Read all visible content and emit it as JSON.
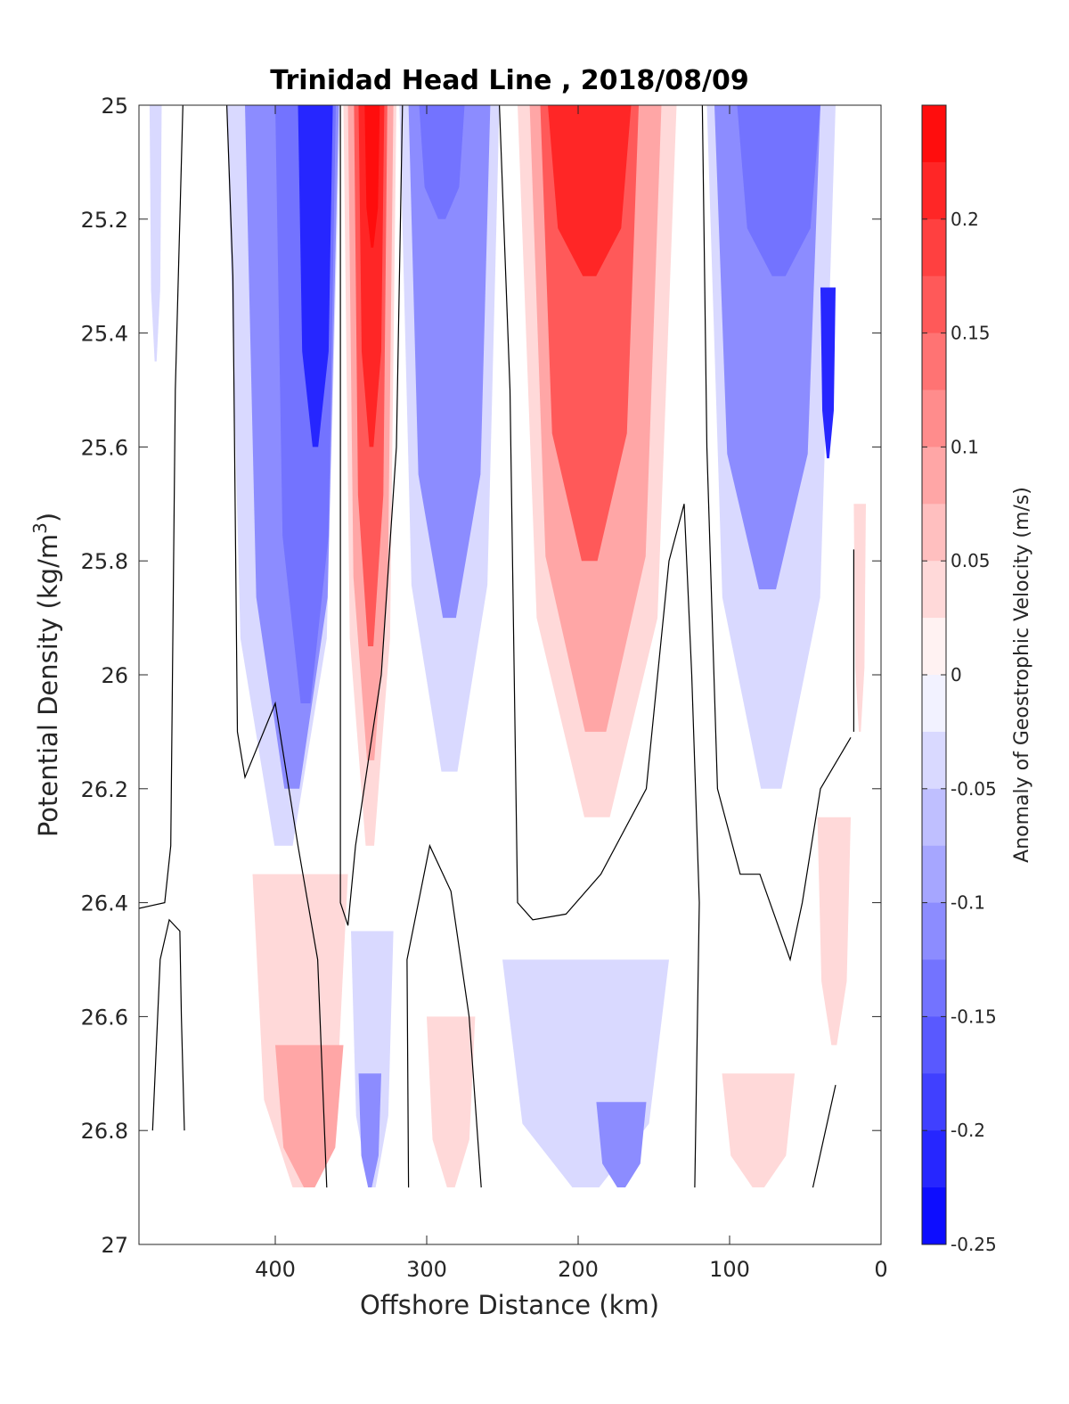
{
  "chart_data": {
    "type": "contourf",
    "title": "Trinidad Head Line , 2018/08/09",
    "xlabel": "Offshore Distance (km)",
    "ylabel": "Potential Density (kg/m",
    "ylabel_sup": "3",
    "ylabel_close": ")",
    "xlim": [
      490,
      0
    ],
    "x_reversed": true,
    "ylim": [
      25,
      27
    ],
    "y_reversed": true,
    "x_ticks": [
      400,
      300,
      200,
      100,
      0
    ],
    "y_ticks": [
      25,
      25.2,
      25.4,
      25.6,
      25.8,
      26,
      26.2,
      26.4,
      26.6,
      26.8,
      27
    ],
    "y_tick_labels": [
      "25",
      "25.2",
      "25.4",
      "25.6",
      "25.8",
      "26",
      "26.2",
      "26.4",
      "26.6",
      "26.8",
      "27"
    ],
    "colorbar": {
      "label": "Anomaly of Geostrophic Velocity (m/s)",
      "range": [
        -0.25,
        0.25
      ],
      "levels": 20,
      "ticks": [
        0.2,
        0.15,
        0.1,
        0.05,
        0,
        -0.05,
        -0.1,
        -0.15,
        -0.2,
        -0.25
      ],
      "tick_labels": [
        "0.2",
        "0.15",
        "0.1",
        "0.05",
        "0",
        "-0.05",
        "-0.1",
        "-0.15",
        "-0.2",
        "-0.25"
      ],
      "colormap": "blue-white-red",
      "neg_color": "#0000ff",
      "pos_color": "#ff0000",
      "zero_color": "#ffffff"
    },
    "data_extent": {
      "density_max": 26.9
    },
    "bands": [
      {
        "name": "blue-west",
        "v": -0.05,
        "x1": 483,
        "x2": 475,
        "y1": 25,
        "y2": 25.45
      },
      {
        "name": "blue-upper-west",
        "v": -0.05,
        "x1": 432,
        "x2": 357,
        "y1": 25,
        "y2": 26.3
      },
      {
        "name": "blue-upper-west",
        "v": -0.1,
        "x1": 420,
        "x2": 358,
        "y1": 25,
        "y2": 26.2
      },
      {
        "name": "blue-upper-west",
        "v": -0.15,
        "x1": 400,
        "x2": 360,
        "y1": 25,
        "y2": 26.05
      },
      {
        "name": "blue-upper-west",
        "v": -0.2,
        "x1": 385,
        "x2": 362,
        "y1": 25,
        "y2": 25.6
      },
      {
        "name": "red-core",
        "v": 0.05,
        "x1": 355,
        "x2": 320,
        "y1": 25,
        "y2": 26.3
      },
      {
        "name": "red-core",
        "v": 0.1,
        "x1": 352,
        "x2": 322,
        "y1": 25,
        "y2": 26.15
      },
      {
        "name": "red-core",
        "v": 0.15,
        "x1": 348,
        "x2": 326,
        "y1": 25,
        "y2": 25.95
      },
      {
        "name": "red-core",
        "v": 0.2,
        "x1": 345,
        "x2": 328,
        "y1": 25,
        "y2": 25.6
      },
      {
        "name": "red-core",
        "v": 0.24,
        "x1": 341,
        "x2": 331,
        "y1": 25,
        "y2": 25.25
      },
      {
        "name": "blue-mid",
        "v": -0.05,
        "x1": 318,
        "x2": 252,
        "y1": 25,
        "y2": 26.17
      },
      {
        "name": "blue-mid",
        "v": -0.1,
        "x1": 312,
        "x2": 258,
        "y1": 25,
        "y2": 25.9
      },
      {
        "name": "blue-mid",
        "v": -0.15,
        "x1": 305,
        "x2": 275,
        "y1": 25,
        "y2": 25.2
      },
      {
        "name": "red-broad",
        "v": 0.05,
        "x1": 240,
        "x2": 135,
        "y1": 25,
        "y2": 26.25
      },
      {
        "name": "red-broad",
        "v": 0.1,
        "x1": 232,
        "x2": 145,
        "y1": 25,
        "y2": 26.1
      },
      {
        "name": "red-broad",
        "v": 0.15,
        "x1": 225,
        "x2": 160,
        "y1": 25,
        "y2": 25.8
      },
      {
        "name": "red-broad",
        "v": 0.2,
        "x1": 220,
        "x2": 165,
        "y1": 25,
        "y2": 25.3
      },
      {
        "name": "blue-east",
        "v": -0.05,
        "x1": 115,
        "x2": 30,
        "y1": 25,
        "y2": 26.2
      },
      {
        "name": "blue-east",
        "v": -0.1,
        "x1": 110,
        "x2": 40,
        "y1": 25,
        "y2": 25.85
      },
      {
        "name": "blue-east",
        "v": -0.15,
        "x1": 95,
        "x2": 40,
        "y1": 25,
        "y2": 25.3
      },
      {
        "name": "blue-nearshore",
        "v": -0.2,
        "x1": 40,
        "x2": 30,
        "y1": 25.32,
        "y2": 25.62
      },
      {
        "name": "red-nearshore",
        "v": 0.05,
        "x1": 18,
        "x2": 10,
        "y1": 25.7,
        "y2": 26.1
      },
      {
        "name": "red-nearshore-deep",
        "v": 0.05,
        "x1": 42,
        "x2": 20,
        "y1": 26.25,
        "y2": 26.65
      },
      {
        "name": "red-deep-west",
        "v": 0.05,
        "x1": 415,
        "x2": 352,
        "y1": 26.35,
        "y2": 26.9
      },
      {
        "name": "red-deep-west",
        "v": 0.1,
        "x1": 400,
        "x2": 355,
        "y1": 26.65,
        "y2": 26.9
      },
      {
        "name": "blue-deep-west",
        "v": -0.05,
        "x1": 350,
        "x2": 322,
        "y1": 26.45,
        "y2": 26.9
      },
      {
        "name": "blue-deep-west",
        "v": -0.1,
        "x1": 345,
        "x2": 330,
        "y1": 26.7,
        "y2": 26.9
      },
      {
        "name": "red-deep-mid",
        "v": 0.05,
        "x1": 300,
        "x2": 268,
        "y1": 26.6,
        "y2": 26.9
      },
      {
        "name": "blue-deep-mid",
        "v": -0.05,
        "x1": 250,
        "x2": 140,
        "y1": 26.5,
        "y2": 26.9
      },
      {
        "name": "blue-deep-mid",
        "v": -0.1,
        "x1": 188,
        "x2": 155,
        "y1": 26.75,
        "y2": 26.9
      },
      {
        "name": "red-deep-east",
        "v": 0.05,
        "x1": 105,
        "x2": 57,
        "y1": 26.7,
        "y2": 26.9
      }
    ],
    "zero_contours": [
      {
        "name": "zero-contour-1",
        "points": [
          [
            461,
            25
          ],
          [
            466,
            25.5
          ],
          [
            469,
            26.3
          ],
          [
            473,
            26.4
          ],
          [
            490,
            26.41
          ]
        ]
      },
      {
        "name": "zero-contour-2",
        "points": [
          [
            460,
            26.8
          ],
          [
            462,
            26.6
          ],
          [
            463,
            26.45
          ],
          [
            470,
            26.43
          ],
          [
            476,
            26.5
          ],
          [
            481,
            26.8
          ]
        ]
      },
      {
        "name": "zero-contour-3",
        "points": [
          [
            432,
            25
          ],
          [
            428,
            25.3
          ],
          [
            425,
            26.1
          ],
          [
            420,
            26.18
          ],
          [
            400,
            26.05
          ],
          [
            385,
            26.3
          ],
          [
            372,
            26.5
          ],
          [
            366,
            26.9
          ]
        ]
      },
      {
        "name": "zero-contour-4",
        "points": [
          [
            357,
            25
          ],
          [
            357,
            26.4
          ],
          [
            352,
            26.44
          ],
          [
            347,
            26.3
          ],
          [
            330,
            26.0
          ],
          [
            320,
            25.6
          ],
          [
            316,
            25.0
          ]
        ]
      },
      {
        "name": "zero-contour-5",
        "points": [
          [
            312,
            26.9
          ],
          [
            313,
            26.5
          ],
          [
            298,
            26.3
          ],
          [
            284,
            26.38
          ],
          [
            272,
            26.6
          ],
          [
            264,
            26.9
          ]
        ]
      },
      {
        "name": "zero-contour-6",
        "points": [
          [
            252,
            25
          ],
          [
            245,
            25.5
          ],
          [
            240,
            26.4
          ],
          [
            230,
            26.43
          ],
          [
            208,
            26.42
          ],
          [
            185,
            26.35
          ],
          [
            155,
            26.2
          ],
          [
            140,
            25.8
          ],
          [
            130,
            25.7
          ],
          [
            125,
            26.0
          ],
          [
            120,
            26.4
          ],
          [
            123,
            26.9
          ]
        ]
      },
      {
        "name": "zero-contour-7",
        "points": [
          [
            118,
            25
          ],
          [
            115,
            25.6
          ],
          [
            108,
            26.2
          ],
          [
            93,
            26.35
          ],
          [
            80,
            26.35
          ],
          [
            60,
            26.5
          ],
          [
            52,
            26.4
          ],
          [
            40,
            26.2
          ],
          [
            20,
            26.11
          ]
        ]
      },
      {
        "name": "zero-contour-8",
        "points": [
          [
            18,
            25.78
          ],
          [
            18,
            26.1
          ]
        ]
      },
      {
        "name": "zero-contour-9",
        "points": [
          [
            30,
            26.72
          ],
          [
            45,
            26.9
          ]
        ]
      }
    ]
  }
}
